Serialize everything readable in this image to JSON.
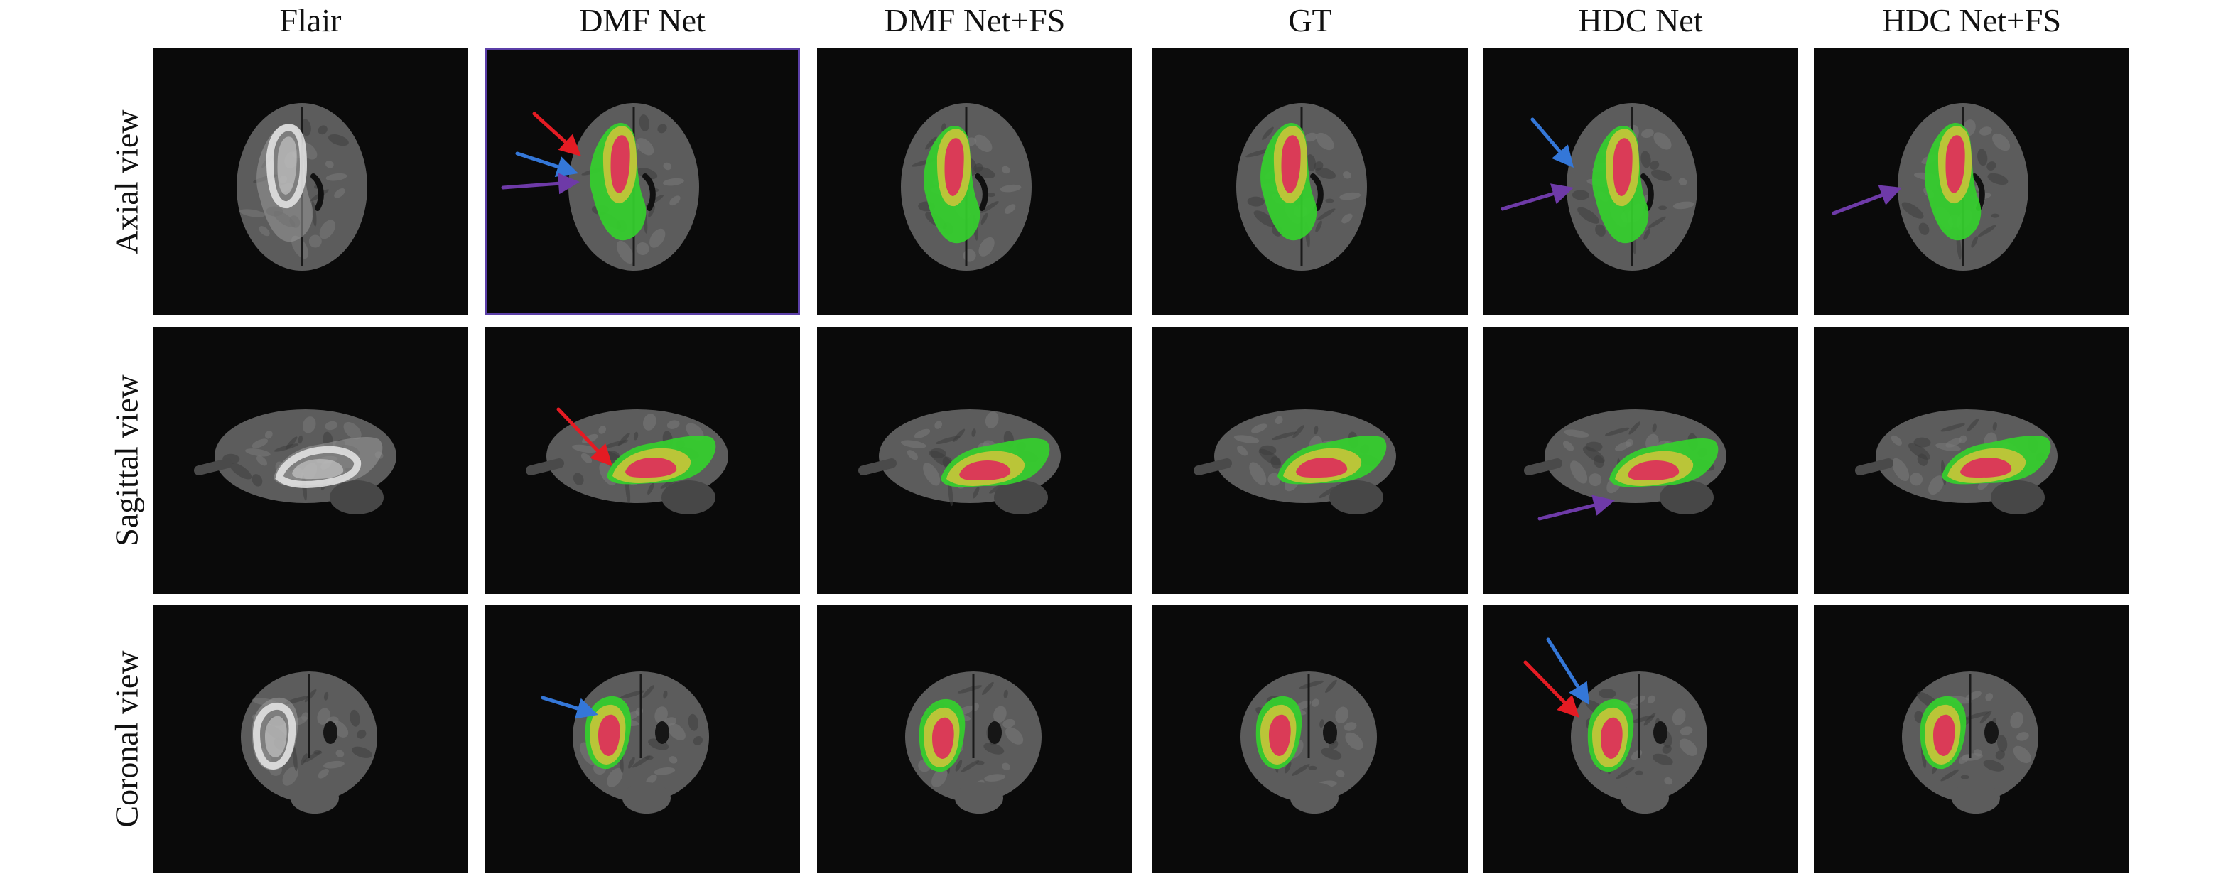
{
  "columns": [
    {
      "label": "Flair",
      "kind": "flair"
    },
    {
      "label": "DMF Net",
      "kind": "seg"
    },
    {
      "label": "DMF Net+FS",
      "kind": "seg"
    },
    {
      "label": "GT",
      "kind": "seg"
    },
    {
      "label": "HDC Net",
      "kind": "seg"
    },
    {
      "label": "HDC Net+FS",
      "kind": "seg"
    }
  ],
  "rows": [
    {
      "label": "Axial view",
      "view": "axial"
    },
    {
      "label": "Sagittal view",
      "view": "sagittal"
    },
    {
      "label": "Coronal view",
      "view": "coronal"
    }
  ],
  "highlighted_panel": {
    "row": 0,
    "col": 1
  },
  "arrows": [
    {
      "row": 0,
      "col": 1,
      "color": "red"
    },
    {
      "row": 0,
      "col": 1,
      "color": "blue"
    },
    {
      "row": 0,
      "col": 1,
      "color": "purple"
    },
    {
      "row": 0,
      "col": 4,
      "color": "blue"
    },
    {
      "row": 0,
      "col": 4,
      "color": "purple"
    },
    {
      "row": 0,
      "col": 5,
      "color": "purple"
    },
    {
      "row": 1,
      "col": 1,
      "color": "red"
    },
    {
      "row": 1,
      "col": 4,
      "color": "purple"
    },
    {
      "row": 2,
      "col": 1,
      "color": "blue"
    },
    {
      "row": 2,
      "col": 4,
      "color": "red"
    },
    {
      "row": 2,
      "col": 4,
      "color": "blue"
    }
  ],
  "colors": {
    "background": "#0a0a0a",
    "brain": "#5c5c5c",
    "edema": "#34d02c",
    "tumor_core": "#c9c43a",
    "enhancing": "#dc2f5a",
    "flair_lesion": "#e6e6e6",
    "red": "#e41b23",
    "blue": "#3477d8",
    "purple": "#6e3aa8"
  }
}
